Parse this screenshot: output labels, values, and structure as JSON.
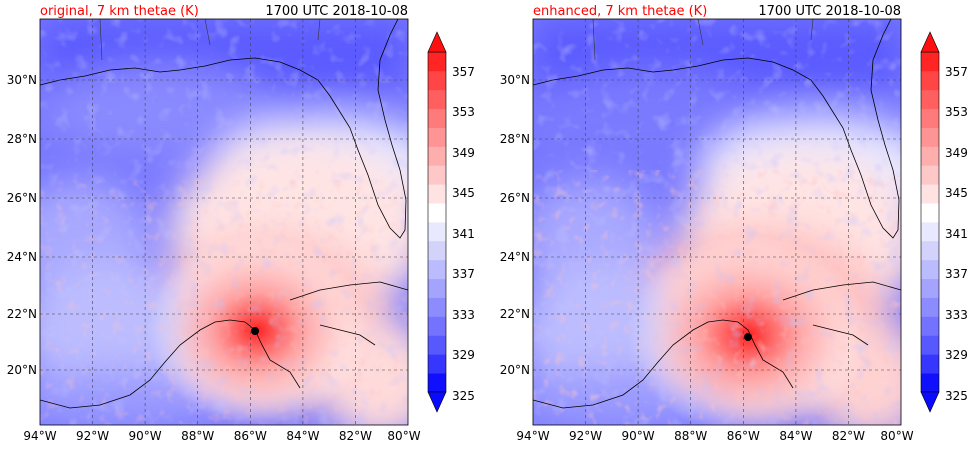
{
  "chart_data": [
    {
      "type": "heatmap",
      "title_left": "original, 7 km thetae (K)",
      "title_right": "1700 UTC 2018-10-08",
      "title_left_color": "#ff0000",
      "x_ticks": [
        "94°W",
        "92°W",
        "90°W",
        "88°W",
        "86°W",
        "84°W",
        "82°W",
        "80°W"
      ],
      "y_ticks": [
        "20°N",
        "22°N",
        "24°N",
        "26°N",
        "28°N",
        "30°N"
      ],
      "xlim": [
        -94,
        -80
      ],
      "ylim": [
        18.2,
        32.0
      ],
      "grid": true,
      "storm_center": {
        "lon": -85.8,
        "lat": 21.35
      },
      "colorbar_ticks": [
        "325",
        "329",
        "333",
        "337",
        "341",
        "345",
        "349",
        "353",
        "357"
      ],
      "colorbar_range": [
        325,
        359
      ],
      "colorbar_extend": "both"
    },
    {
      "type": "heatmap",
      "title_left": "enhanced, 7 km thetae (K)",
      "title_right": "1700 UTC 2018-10-08",
      "title_left_color": "#ff0000",
      "x_ticks": [
        "94°W",
        "92°W",
        "90°W",
        "88°W",
        "86°W",
        "84°W",
        "82°W",
        "80°W"
      ],
      "y_ticks": [
        "20°N",
        "22°N",
        "24°N",
        "26°N",
        "28°N",
        "30°N"
      ],
      "xlim": [
        -94,
        -80
      ],
      "ylim": [
        18.2,
        32.0
      ],
      "grid": true,
      "storm_center": {
        "lon": -85.9,
        "lat": 21.2
      },
      "colorbar_ticks": [
        "325",
        "329",
        "333",
        "337",
        "341",
        "345",
        "349",
        "353",
        "357"
      ],
      "colorbar_range": [
        325,
        359
      ],
      "colorbar_extend": "both"
    }
  ],
  "colors": {
    "colormap": [
      "#1010ff",
      "#3636ff",
      "#5858ff",
      "#7373ff",
      "#8c8cff",
      "#a4a4ff",
      "#bbbbff",
      "#d2d2fb",
      "#e8e8ff",
      "#ffffff",
      "#ffe3e3",
      "#ffc8c8",
      "#ffaeae",
      "#ff9494",
      "#ff7a7a",
      "#ff5f5f",
      "#ff4545",
      "#ff2525"
    ],
    "grid": "#444444",
    "coast": "#000000"
  }
}
